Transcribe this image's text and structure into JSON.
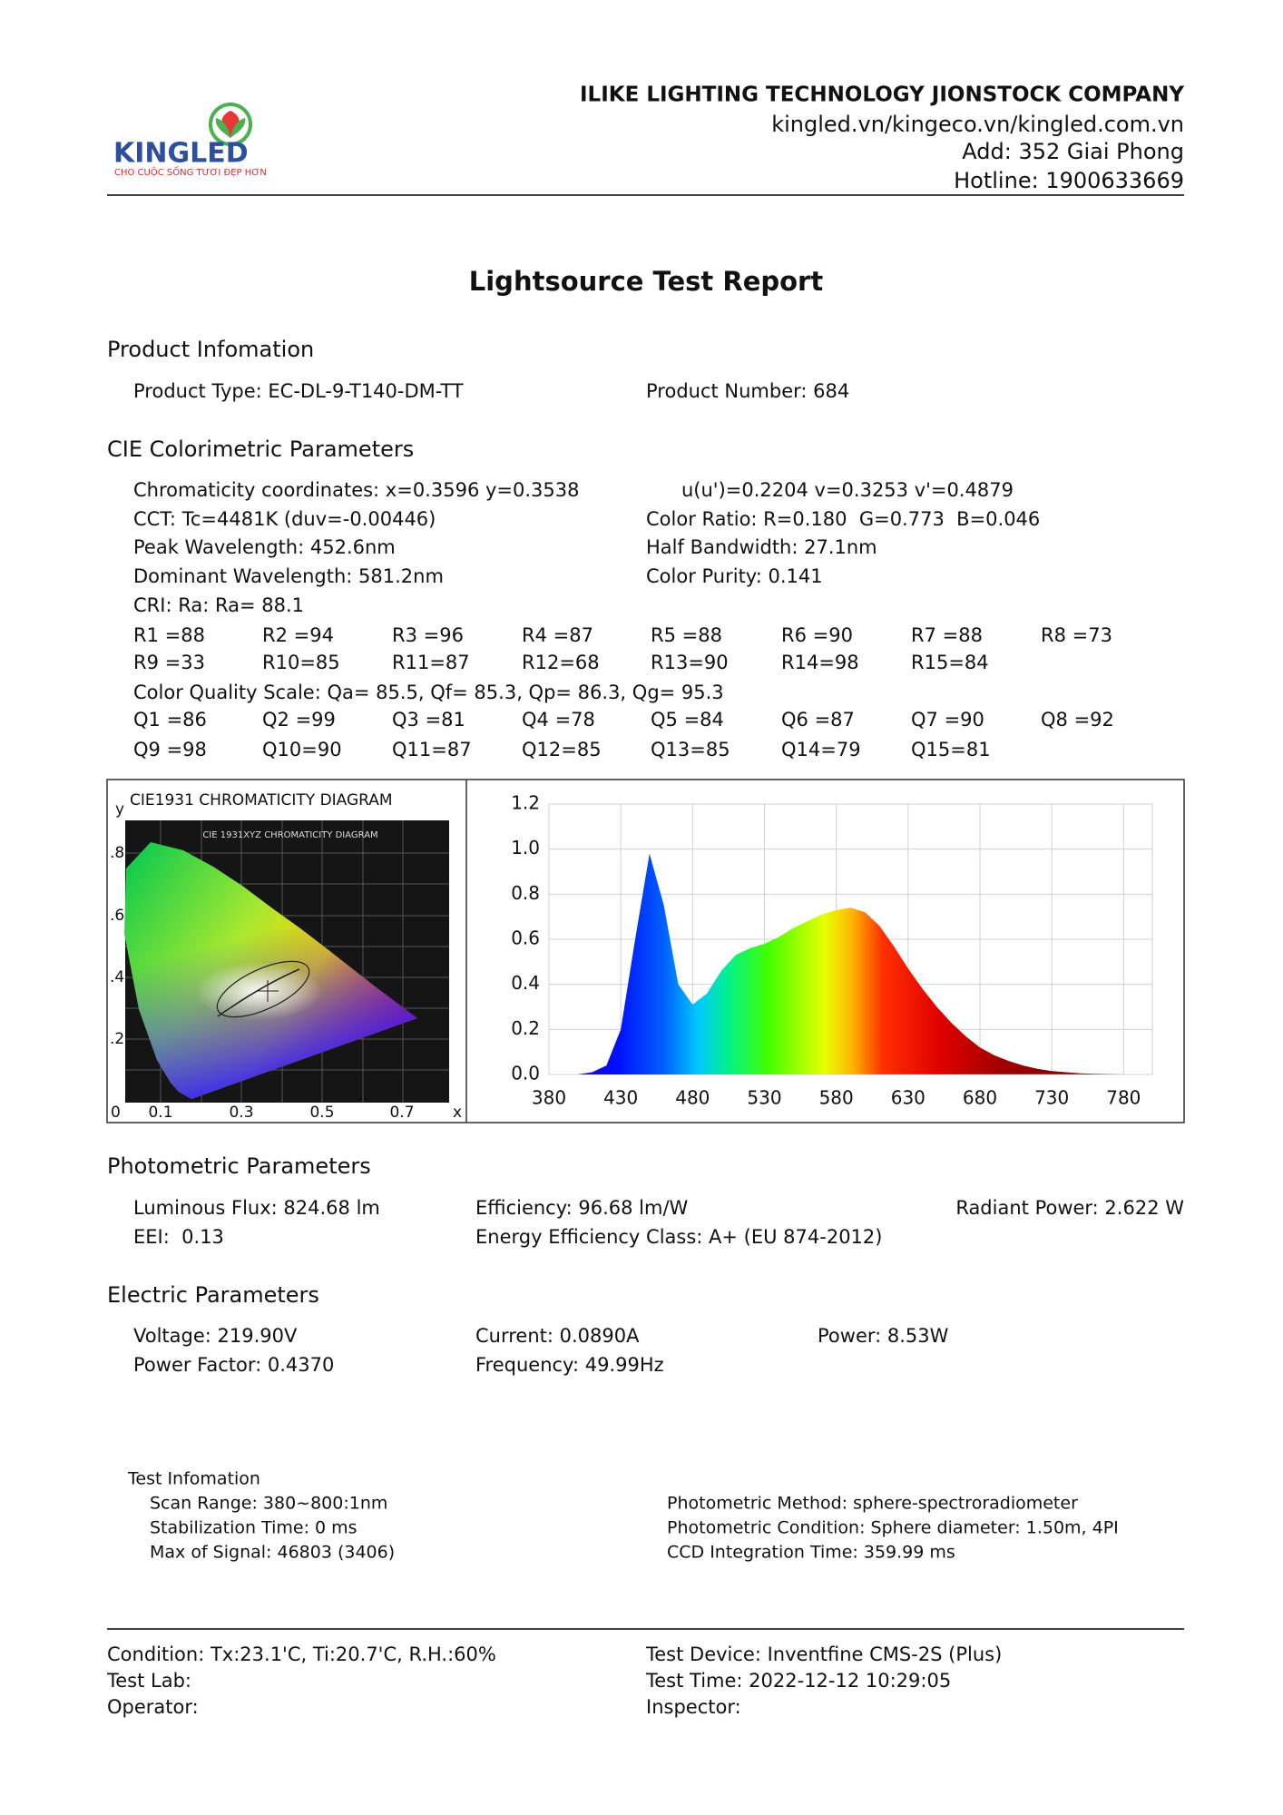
{
  "header": {
    "company": "ILIKE LIGHTING TECHNOLOGY JIONSTOCK COMPANY",
    "website": "kingled.vn/kingeco.vn/kingled.com.vn",
    "address": "Add: 352 Giai Phong",
    "hotline": "Hotline: 1900633669"
  },
  "logo": {
    "brand": "KINGLED",
    "tagline": "CHO CUỘC SỐNG TƯƠI ĐẸP HƠN"
  },
  "title": "Lightsource Test Report",
  "product": {
    "heading": "Product Infomation",
    "rows": [
      [
        "Product Type: EC-DL-9-T140-DM-TT",
        "Product Number: 684"
      ]
    ]
  },
  "cie": {
    "heading": "CIE Colorimetric Parameters",
    "rows": [
      [
        "Chromaticity coordinates: x=0.3596 y=0.3538",
        "u(u')=0.2204 v=0.3253 v'=0.4879"
      ],
      [
        "CCT: Tc=4481K (duv=-0.00446)",
        "Color Ratio: R=0.180  G=0.773  B=0.046"
      ],
      [
        "Peak Wavelength: 452.6nm",
        "Half Bandwidth: 27.1nm"
      ],
      [
        "Dominant Wavelength: 581.2nm",
        "Color Purity: 0.141"
      ],
      [
        "CRI: Ra: Ra= 88.1"
      ],
      [
        "R1 =88",
        "R2 =94",
        "R3 =96",
        "R4 =87",
        "R5 =88",
        "R6 =90",
        "R7 =88",
        "R8 =73"
      ],
      [
        "R9 =33",
        "R10=85",
        "R11=87",
        "R12=68",
        "R13=90",
        "R14=98",
        "R15=84"
      ],
      [
        "Color Quality Scale: Qa= 85.5, Qf= 85.3, Qp= 86.3, Qg= 95.3"
      ],
      [
        "Q1 =86",
        "Q2 =99",
        "Q3 =81",
        "Q4 =78",
        "Q5 =84",
        "Q6 =87",
        "Q7 =90",
        "Q8 =92"
      ],
      [
        "Q9 =98",
        "Q10=90",
        "Q11=87",
        "Q12=85",
        "Q13=85",
        "Q14=79",
        "Q15=81"
      ]
    ]
  },
  "cie_diagram": {
    "title": "CIE1931 CHROMATICITY DIAGRAM",
    "inner_title": "CIE 1931XYZ CHROMATICITY DIAGRAM",
    "y_label": "y",
    "x_label": "x",
    "origin": "0",
    "y_ticks": [
      ".8",
      ".6",
      ".4",
      ".2"
    ],
    "x_ticks": [
      "0.1",
      "0.3",
      "0.5",
      "0.7"
    ]
  },
  "chart_data": {
    "type": "area",
    "x": [
      380,
      390,
      400,
      410,
      420,
      430,
      440,
      450,
      460,
      470,
      480,
      490,
      500,
      510,
      520,
      530,
      540,
      550,
      560,
      570,
      580,
      590,
      600,
      610,
      620,
      630,
      640,
      650,
      660,
      670,
      680,
      690,
      700,
      710,
      720,
      730,
      740,
      750,
      760,
      770,
      780
    ],
    "values": [
      0,
      0,
      0,
      0.01,
      0.04,
      0.2,
      0.6,
      0.98,
      0.75,
      0.4,
      0.31,
      0.36,
      0.46,
      0.53,
      0.56,
      0.58,
      0.61,
      0.65,
      0.68,
      0.71,
      0.73,
      0.74,
      0.72,
      0.66,
      0.57,
      0.47,
      0.38,
      0.3,
      0.23,
      0.17,
      0.12,
      0.085,
      0.06,
      0.04,
      0.025,
      0.015,
      0.01,
      0.005,
      0.003,
      0.002,
      0.001
    ],
    "xlim": [
      380,
      800
    ],
    "xticks": [
      380,
      430,
      480,
      530,
      580,
      630,
      680,
      730,
      780
    ],
    "ylim": [
      0,
      1.2
    ],
    "yticks": [
      {
        "value": 0,
        "label": "0.0"
      },
      0.2,
      0.4,
      0.6,
      0.8,
      {
        "value": 1,
        "label": "1.0"
      },
      1.2
    ],
    "grid": true
  },
  "photometric": {
    "heading": "Photometric Parameters",
    "rows": [
      [
        "Luminous Flux: 824.68 lm",
        "Efficiency: 96.68 lm/W",
        "Radiant Power: 2.622 W"
      ],
      [
        "EEI:  0.13",
        "Energy Efficiency Class: A+ (EU 874-2012)"
      ]
    ]
  },
  "electric": {
    "heading": "Electric Parameters",
    "rows": [
      [
        "Voltage: 219.90V",
        "Current: 0.0890A",
        "Power: 8.53W"
      ],
      [
        "Power Factor: 0.4370",
        "Frequency: 49.99Hz"
      ]
    ]
  },
  "test_info": {
    "heading": "Test Infomation",
    "left": [
      "Scan Range: 380~800:1nm",
      "Stabilization Time: 0 ms",
      "Max of Signal: 46803 (3406)"
    ],
    "right": [
      "Photometric Method: sphere-spectroradiometer",
      "Photometric Condition: Sphere diameter: 1.50m, 4PI",
      "CCD Integration Time: 359.99 ms"
    ]
  },
  "footer": {
    "left": [
      "Condition: Tx:23.1'C, Ti:20.7'C, R.H.:60%",
      "Test Lab:",
      "Operator:"
    ],
    "right": [
      "Test Device: Inventfine CMS-2S (Plus)",
      "Test Time: 2022-12-12 10:29:05",
      "Inspector:"
    ]
  }
}
